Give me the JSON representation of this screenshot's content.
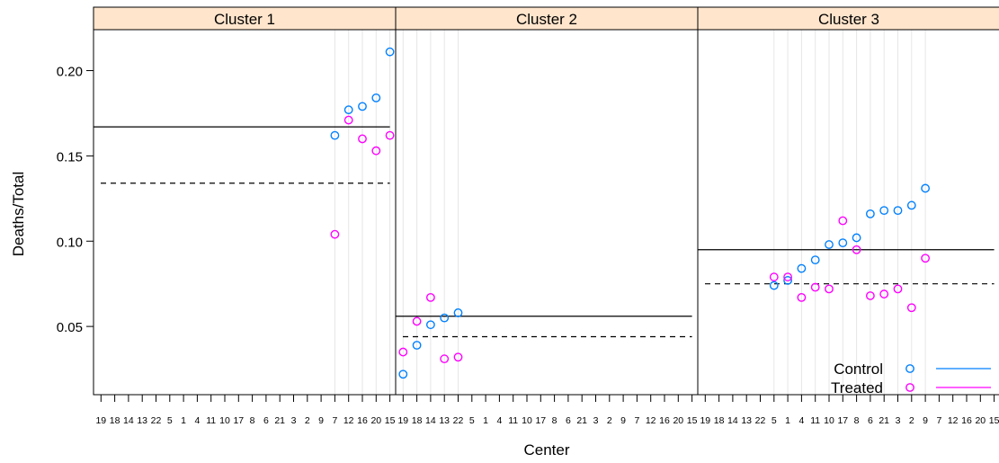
{
  "chart_data": {
    "type": "scatter",
    "ylabel": "Deaths/Total",
    "xlabel": "Center",
    "panels": [
      "Cluster 1",
      "Cluster 2",
      "Cluster 3"
    ],
    "centers": [
      "19",
      "18",
      "14",
      "13",
      "22",
      "5",
      "1",
      "4",
      "11",
      "10",
      "17",
      "8",
      "6",
      "21",
      "3",
      "2",
      "9",
      "7",
      "12",
      "16",
      "20",
      "15"
    ],
    "ylim": [
      0.01,
      0.224
    ],
    "yticks": [
      0.05,
      0.1,
      0.15,
      0.2
    ],
    "ytick_labels": [
      "0.05",
      "0.10",
      "0.15",
      "0.20"
    ],
    "colors": {
      "Control": "#0080ff",
      "Treated": "#ff00ff",
      "strip": "#ffe5cc",
      "grid": "#e6e6e6"
    },
    "legend": [
      {
        "name": "Control",
        "color": "#0080ff"
      },
      {
        "name": "Treated",
        "color": "#ff00ff"
      }
    ],
    "groups": [
      {
        "cluster": "Cluster 1",
        "control": [
          [
            "7",
            0.162
          ],
          [
            "12",
            0.177
          ],
          [
            "16",
            0.179
          ],
          [
            "20",
            0.184
          ],
          [
            "15",
            0.211
          ]
        ],
        "treated": [
          [
            "7",
            0.104
          ],
          [
            "12",
            0.171
          ],
          [
            "16",
            0.16
          ],
          [
            "20",
            0.153
          ],
          [
            "15",
            0.162
          ]
        ],
        "control_mean": 0.167,
        "treated_mean": 0.134
      },
      {
        "cluster": "Cluster 2",
        "control": [
          [
            "19",
            0.022
          ],
          [
            "18",
            0.039
          ],
          [
            "14",
            0.051
          ],
          [
            "13",
            0.055
          ],
          [
            "22",
            0.058
          ]
        ],
        "treated": [
          [
            "19",
            0.035
          ],
          [
            "18",
            0.053
          ],
          [
            "14",
            0.067
          ],
          [
            "13",
            0.031
          ],
          [
            "22",
            0.032
          ]
        ],
        "control_mean": 0.056,
        "treated_mean": 0.044
      },
      {
        "cluster": "Cluster 3",
        "control": [
          [
            "5",
            0.074
          ],
          [
            "1",
            0.077
          ],
          [
            "4",
            0.084
          ],
          [
            "11",
            0.089
          ],
          [
            "10",
            0.098
          ],
          [
            "17",
            0.099
          ],
          [
            "8",
            0.102
          ],
          [
            "6",
            0.116
          ],
          [
            "21",
            0.118
          ],
          [
            "3",
            0.118
          ],
          [
            "2",
            0.121
          ],
          [
            "9",
            0.131
          ]
        ],
        "treated": [
          [
            "5",
            0.079
          ],
          [
            "1",
            0.079
          ],
          [
            "4",
            0.067
          ],
          [
            "11",
            0.073
          ],
          [
            "10",
            0.072
          ],
          [
            "17",
            0.112
          ],
          [
            "8",
            0.095
          ],
          [
            "6",
            0.068
          ],
          [
            "21",
            0.069
          ],
          [
            "3",
            0.072
          ],
          [
            "2",
            0.061
          ],
          [
            "9",
            0.09
          ]
        ],
        "control_mean": 0.095,
        "treated_mean": 0.075
      }
    ]
  }
}
